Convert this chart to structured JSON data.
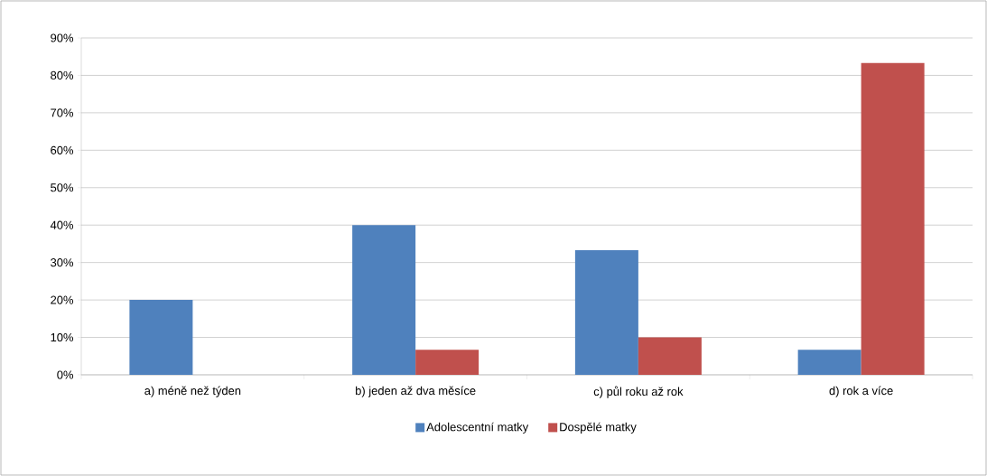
{
  "chart_data": {
    "type": "bar",
    "categories": [
      "a) méně než týden",
      "b) jeden až dva měsíce",
      "c) půl roku až rok",
      "d) rok a více"
    ],
    "series": [
      {
        "name": "Adolescentní matky",
        "color": "#4f81bd",
        "values": [
          20,
          40,
          33.3,
          6.7
        ]
      },
      {
        "name": "Dospělé matky",
        "color": "#c0504d",
        "values": [
          0,
          6.7,
          10,
          83.3
        ]
      }
    ],
    "ylim": [
      0,
      90
    ],
    "yticks": [
      {
        "value": 0,
        "label": "0%"
      },
      {
        "value": 10,
        "label": "10%"
      },
      {
        "value": 20,
        "label": "20%"
      },
      {
        "value": 30,
        "label": "30%"
      },
      {
        "value": 40,
        "label": "40%"
      },
      {
        "value": 50,
        "label": "50%"
      },
      {
        "value": 60,
        "label": "60%"
      },
      {
        "value": 70,
        "label": "70%"
      },
      {
        "value": 80,
        "label": "80%"
      },
      {
        "value": 90,
        "label": "90%"
      }
    ],
    "grid": "y",
    "legend": "bottom"
  }
}
